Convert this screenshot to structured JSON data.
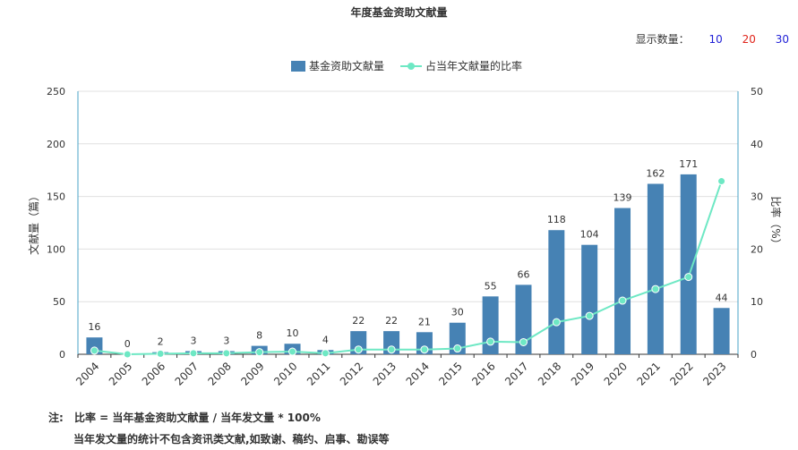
{
  "page": {
    "title": "年度基金资助文献量",
    "display_count_label": "显示数量：",
    "display_count_options": [
      {
        "label": "10",
        "color": "#1f1fd6"
      },
      {
        "label": "20",
        "color": "#e0241a"
      },
      {
        "label": "30",
        "color": "#1f1fd6"
      }
    ],
    "note_prefix": "注:",
    "note_line1": "比率 = 当年基金资助文献量 / 当年发文量 * 100%",
    "note_line2": "当年发文量的统计不包含资讯类文献,如致谢、稿约、启事、勘误等"
  },
  "chart_data": {
    "type": "bar",
    "categories": [
      "2004",
      "2005",
      "2006",
      "2007",
      "2008",
      "2009",
      "2010",
      "2011",
      "2012",
      "2013",
      "2014",
      "2015",
      "2016",
      "2017",
      "2018",
      "2019",
      "2020",
      "2021",
      "2022",
      "2023"
    ],
    "series": [
      {
        "name": "基金资助文献量",
        "type": "bar",
        "axis": "left",
        "color": "#4682b4",
        "values": [
          16,
          0,
          2,
          3,
          3,
          8,
          10,
          4,
          22,
          22,
          21,
          30,
          55,
          66,
          118,
          104,
          139,
          162,
          171,
          44
        ]
      },
      {
        "name": "占当年文献量的比率",
        "type": "line",
        "axis": "right",
        "color": "#6ee8c4",
        "values": [
          0.7,
          0,
          0.1,
          0.2,
          0.2,
          0.4,
          0.5,
          0.2,
          0.9,
          0.9,
          0.9,
          1.1,
          2.4,
          2.3,
          6.1,
          7.3,
          10.2,
          12.4,
          14.7,
          32.9
        ]
      }
    ],
    "ylabel": "文献量（篇）",
    "y2label": "比率（%）",
    "ylim": [
      0,
      250
    ],
    "y2lim": [
      0,
      50
    ],
    "yticks": [
      0,
      50,
      100,
      150,
      200,
      250
    ],
    "y2ticks": [
      0,
      10,
      20,
      30,
      40,
      50
    ],
    "grid": true,
    "legend_position": "top"
  }
}
